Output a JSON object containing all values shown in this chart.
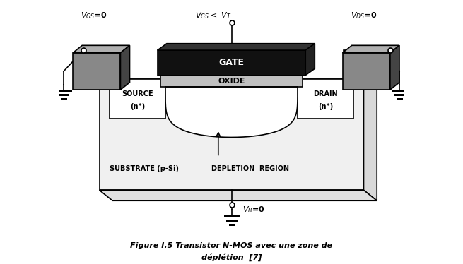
{
  "fig_width": 6.55,
  "fig_height": 3.74,
  "dpi": 100,
  "bg_color": "#ffffff",
  "caption_line1": "Figure I.5 Transistor N-MOS avec une zone de",
  "caption_line2": "déplétion  [7]",
  "label_gate": "GATE",
  "label_oxide": "OXIDE",
  "label_source": "SOURCE",
  "label_source_n": "(n⁺)",
  "label_drain": "DRAIN",
  "label_drain_n": "(n⁺)",
  "label_substrate": "SUBSTRATE (p-Si)",
  "label_depletion": "DEPLETION  REGION",
  "colors": {
    "black": "#000000",
    "gate_dark": "#111111",
    "oxide_light": "#c0c0c0",
    "sg_gray_light": "#b0b0b0",
    "sg_gray_mid": "#888888",
    "sg_gray_dark": "#444444",
    "substrate_fill": "#f0f0f0",
    "white": "#ffffff",
    "depletion_white": "#ffffff"
  },
  "xlim": [
    0,
    13
  ],
  "ylim": [
    0,
    10
  ]
}
